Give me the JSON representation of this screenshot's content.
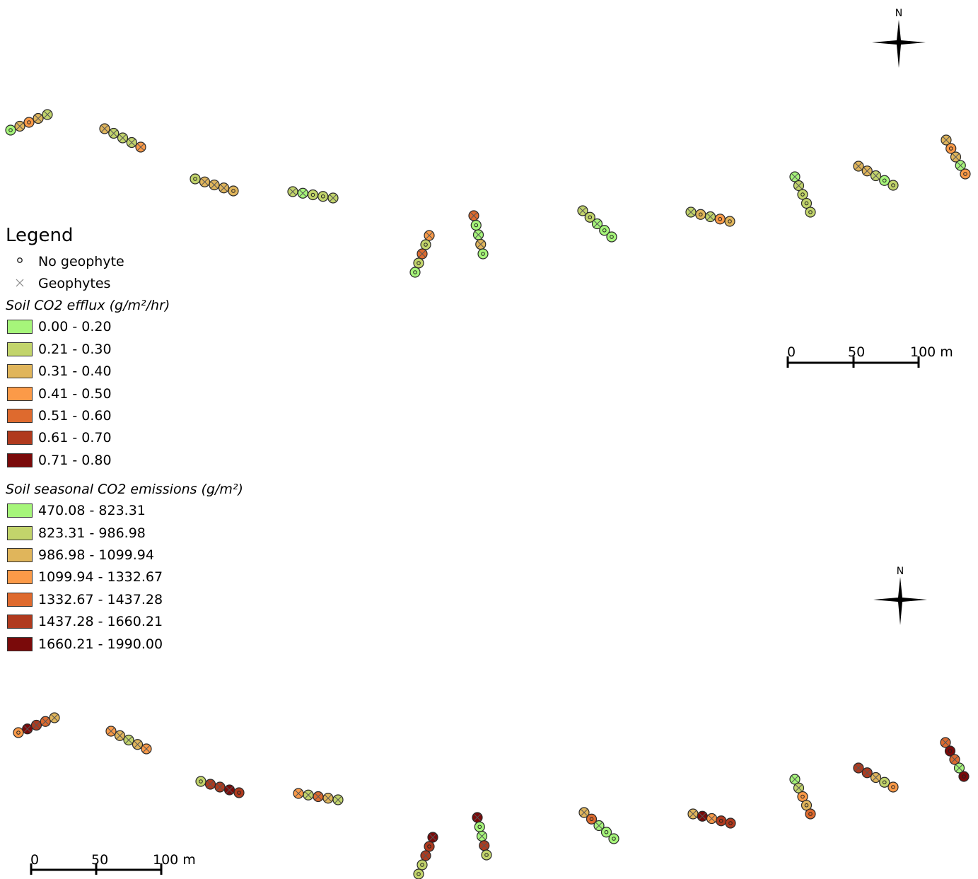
{
  "legend": {
    "title": "Legend",
    "points": [
      {
        "label": "No geophyte",
        "symbol": "circle-dot-icon"
      },
      {
        "label": "Geophytes",
        "symbol": "cross-icon"
      }
    ],
    "efflux": {
      "title": "Soil CO2 efflux (g/m²/hr)",
      "classes": [
        {
          "label": "0.00 - 0.20",
          "color": "#a6f57a"
        },
        {
          "label": "0.21 - 0.30",
          "color": "#c2d46b"
        },
        {
          "label": "0.31 - 0.40",
          "color": "#e0b55b"
        },
        {
          "label": "0.41 - 0.50",
          "color": "#fb9a48"
        },
        {
          "label": "0.51 - 0.60",
          "color": "#de6a2e"
        },
        {
          "label": "0.61 - 0.70",
          "color": "#b03a1e"
        },
        {
          "label": "0.71 - 0.80",
          "color": "#7a0a0a"
        }
      ]
    },
    "seasonal": {
      "title": "Soil seasonal CO2 emissions (g/m²)",
      "classes": [
        {
          "label": "470.08 - 823.31",
          "color": "#a6f57a"
        },
        {
          "label": "823.31 - 986.98",
          "color": "#c2d46b"
        },
        {
          "label": "986.98 - 1099.94",
          "color": "#e0b55b"
        },
        {
          "label": "1099.94 - 1332.67",
          "color": "#fb9a48"
        },
        {
          "label": "1332.67 - 1437.28",
          "color": "#de6a2e"
        },
        {
          "label": "1437.28 - 1660.21",
          "color": "#b03a1e"
        },
        {
          "label": "1660.21 - 1990.00",
          "color": "#7a0a0a"
        }
      ]
    }
  },
  "scale_bars": [
    {
      "labels": [
        "0",
        "50",
        "100 m"
      ]
    },
    {
      "labels": [
        "0",
        "50",
        "100 m"
      ]
    }
  ],
  "north_arrows": [
    {
      "label": "N"
    },
    {
      "label": "N"
    }
  ],
  "maps": {
    "efflux": {
      "transects": [
        [
          [
            0,
            "o"
          ],
          [
            2,
            "x"
          ],
          [
            3,
            "o"
          ],
          [
            2,
            "x"
          ],
          [
            1,
            "x"
          ]
        ],
        [
          [
            2,
            "x"
          ],
          [
            1,
            "x"
          ],
          [
            1,
            "x"
          ],
          [
            1,
            "x"
          ],
          [
            3,
            "x"
          ]
        ],
        [
          [
            1,
            "o"
          ],
          [
            2,
            "x"
          ],
          [
            2,
            "x"
          ],
          [
            2,
            "x"
          ],
          [
            2,
            "o"
          ]
        ],
        [
          [
            1,
            "x"
          ],
          [
            0,
            "x"
          ],
          [
            1,
            "o"
          ],
          [
            1,
            "o"
          ],
          [
            1,
            "x"
          ]
        ],
        [
          [
            3,
            "x"
          ],
          [
            1,
            "o"
          ],
          [
            4,
            "x"
          ],
          [
            1,
            "o"
          ],
          [
            0,
            "o"
          ]
        ],
        [
          [
            4,
            "x"
          ],
          [
            0,
            "o"
          ],
          [
            0,
            "x"
          ],
          [
            2,
            "x"
          ],
          [
            0,
            "o"
          ]
        ],
        [
          [
            1,
            "x"
          ],
          [
            1,
            "o"
          ],
          [
            0,
            "x"
          ],
          [
            0,
            "o"
          ],
          [
            0,
            "o"
          ]
        ],
        [
          [
            1,
            "x"
          ],
          [
            2,
            "o"
          ],
          [
            1,
            "x"
          ],
          [
            3,
            "o"
          ],
          [
            2,
            "o"
          ]
        ],
        [
          [
            0,
            "x"
          ],
          [
            1,
            "x"
          ],
          [
            1,
            "o"
          ],
          [
            1,
            "o"
          ],
          [
            1,
            "o"
          ]
        ],
        [
          [
            2,
            "x"
          ],
          [
            2,
            "x"
          ],
          [
            1,
            "x"
          ],
          [
            0,
            "o"
          ],
          [
            1,
            "o"
          ]
        ],
        [
          [
            2,
            "x"
          ],
          [
            3,
            "o"
          ],
          [
            2,
            "x"
          ],
          [
            0,
            "x"
          ],
          [
            3,
            "o"
          ]
        ]
      ]
    },
    "seasonal": {
      "transects": [
        [
          [
            3,
            "o"
          ],
          [
            6,
            "x"
          ],
          [
            5,
            "x"
          ],
          [
            4,
            "x"
          ],
          [
            2,
            "x"
          ]
        ],
        [
          [
            3,
            "x"
          ],
          [
            2,
            "x"
          ],
          [
            1,
            "x"
          ],
          [
            2,
            "x"
          ],
          [
            3,
            "x"
          ]
        ],
        [
          [
            1,
            "o"
          ],
          [
            5,
            "x"
          ],
          [
            5,
            "x"
          ],
          [
            6,
            "x"
          ],
          [
            5,
            "o"
          ]
        ],
        [
          [
            3,
            "x"
          ],
          [
            1,
            "x"
          ],
          [
            4,
            "x"
          ],
          [
            2,
            "x"
          ],
          [
            1,
            "x"
          ]
        ],
        [
          [
            6,
            "x"
          ],
          [
            5,
            "o"
          ],
          [
            5,
            "x"
          ],
          [
            1,
            "o"
          ],
          [
            1,
            "o"
          ]
        ],
        [
          [
            6,
            "x"
          ],
          [
            0,
            "o"
          ],
          [
            0,
            "x"
          ],
          [
            5,
            "x"
          ],
          [
            1,
            "o"
          ]
        ],
        [
          [
            2,
            "x"
          ],
          [
            4,
            "o"
          ],
          [
            0,
            "x"
          ],
          [
            0,
            "o"
          ],
          [
            0,
            "o"
          ]
        ],
        [
          [
            2,
            "x"
          ],
          [
            6,
            "x"
          ],
          [
            3,
            "x"
          ],
          [
            5,
            "o"
          ],
          [
            5,
            "o"
          ]
        ],
        [
          [
            0,
            "x"
          ],
          [
            1,
            "x"
          ],
          [
            3,
            "o"
          ],
          [
            2,
            "o"
          ],
          [
            4,
            "o"
          ]
        ],
        [
          [
            5,
            "x"
          ],
          [
            5,
            "x"
          ],
          [
            2,
            "x"
          ],
          [
            1,
            "o"
          ],
          [
            3,
            "o"
          ]
        ],
        [
          [
            4,
            "x"
          ],
          [
            6,
            "o"
          ],
          [
            4,
            "x"
          ],
          [
            0,
            "x"
          ],
          [
            6,
            "o"
          ]
        ]
      ]
    }
  }
}
